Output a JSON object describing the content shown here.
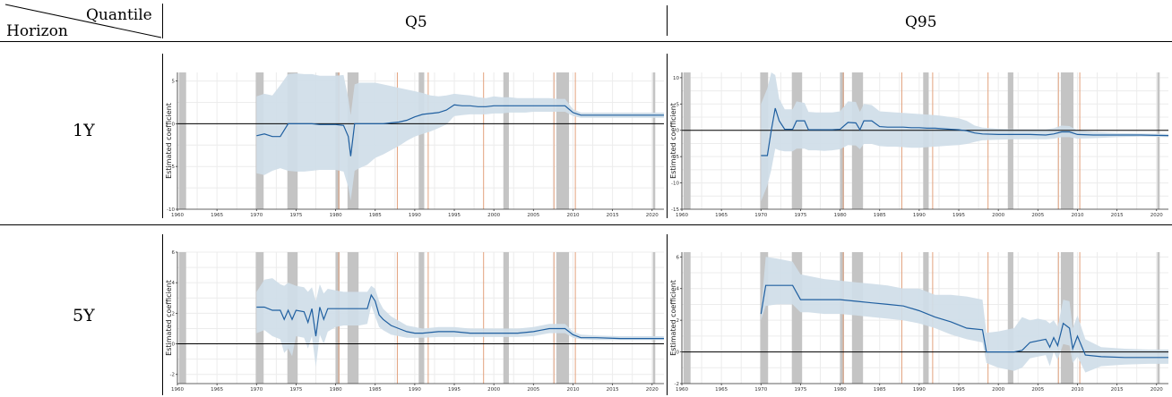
{
  "table": {
    "corner_top": "Quantile",
    "corner_bottom": "Horizon",
    "col_headers": [
      "Q5",
      "Q95"
    ],
    "row_headers": [
      "1Y",
      "5Y"
    ]
  },
  "colors": {
    "line": "#1f5fa0",
    "band": "#cfdde8",
    "recession": "#c4c4c4",
    "event": "#e2a27e",
    "grid": "#ececec",
    "zero": "#000000"
  },
  "shared": {
    "xlim": [
      1960,
      2021.5
    ],
    "xticks": [
      1960,
      1965,
      1970,
      1975,
      1980,
      1985,
      1990,
      1995,
      2000,
      2005,
      2010,
      2015,
      2020
    ],
    "ylabel": "Estimated coefficient",
    "recessions": [
      [
        1960.2,
        1961.1
      ],
      [
        1969.9,
        1970.9
      ],
      [
        1973.9,
        1975.2
      ],
      [
        1980.0,
        1980.5
      ],
      [
        1981.5,
        1982.9
      ],
      [
        1990.5,
        1991.2
      ],
      [
        2001.2,
        2001.9
      ],
      [
        2007.9,
        2009.5
      ],
      [
        2020.1,
        2020.4
      ]
    ],
    "events": [
      1980.4,
      1987.8,
      1991.7,
      1998.7,
      2007.6,
      2010.3
    ]
  },
  "chart_data": [
    {
      "type": "line",
      "id": "q5-1y",
      "ylim": [
        -10,
        6
      ],
      "yticks": [
        -10,
        -5,
        0,
        5
      ],
      "x": [
        1970,
        1971,
        1972,
        1973,
        1974,
        1975,
        1976,
        1977,
        1978,
        1979,
        1980,
        1981,
        1981.6,
        1981.9,
        1982.4,
        1983,
        1984,
        1985,
        1986,
        1987,
        1988,
        1989,
        1990,
        1991,
        1992,
        1993,
        1994,
        1995,
        1996,
        1997,
        1998,
        1999,
        2000,
        2001,
        2002,
        2003,
        2004,
        2005,
        2006,
        2007,
        2008,
        2009,
        2010,
        2011,
        2012,
        2013,
        2014,
        2015,
        2016,
        2017,
        2018,
        2019,
        2020,
        2021.5
      ],
      "y": [
        -1.4,
        -1.2,
        -1.5,
        -1.5,
        0.0,
        0.0,
        0.0,
        0.0,
        -0.1,
        -0.1,
        -0.1,
        -0.2,
        -1.5,
        -3.8,
        0.0,
        0.0,
        0.0,
        0.0,
        0.0,
        0.1,
        0.2,
        0.4,
        0.8,
        1.1,
        1.2,
        1.3,
        1.6,
        2.2,
        2.1,
        2.1,
        2.0,
        2.0,
        2.1,
        2.1,
        2.1,
        2.1,
        2.1,
        2.1,
        2.1,
        2.1,
        2.1,
        2.1,
        1.3,
        1.0,
        1.0,
        1.0,
        1.0,
        1.0,
        1.0,
        1.0,
        1.0,
        1.0,
        1.0,
        1.0
      ],
      "lower": [
        -5.8,
        -6.0,
        -5.5,
        -5.2,
        -5.5,
        -5.6,
        -5.6,
        -5.5,
        -5.4,
        -5.4,
        -5.4,
        -5.6,
        -7.4,
        -9.0,
        -5.5,
        -5.2,
        -4.8,
        -4.0,
        -3.6,
        -3.1,
        -2.6,
        -2.0,
        -1.5,
        -1.2,
        -0.9,
        -0.5,
        -0.1,
        0.9,
        1.0,
        1.1,
        1.1,
        1.1,
        1.2,
        1.2,
        1.3,
        1.3,
        1.3,
        1.4,
        1.4,
        1.4,
        1.4,
        1.4,
        0.9,
        0.7,
        0.7,
        0.7,
        0.7,
        0.7,
        0.7,
        0.7,
        0.7,
        0.7,
        0.7,
        0.7
      ],
      "upper": [
        3.2,
        3.5,
        3.3,
        4.5,
        5.8,
        5.9,
        5.8,
        5.8,
        5.6,
        5.6,
        5.6,
        5.7,
        3.0,
        1.0,
        4.6,
        4.8,
        4.8,
        4.8,
        4.6,
        4.4,
        4.2,
        4.0,
        3.8,
        3.6,
        3.3,
        3.2,
        3.3,
        3.5,
        3.4,
        3.3,
        3.1,
        3.0,
        3.2,
        3.1,
        3.1,
        3.0,
        3.0,
        3.0,
        3.0,
        3.0,
        2.9,
        2.9,
        1.7,
        1.3,
        1.3,
        1.3,
        1.3,
        1.3,
        1.3,
        1.3,
        1.3,
        1.3,
        1.3,
        1.3
      ]
    },
    {
      "type": "line",
      "id": "q95-1y",
      "ylim": [
        -15,
        11
      ],
      "yticks": [
        -15,
        -10,
        -5,
        0,
        5,
        10
      ],
      "x": [
        1970,
        1970.8,
        1971.3,
        1971.8,
        1972.3,
        1973,
        1974,
        1974.5,
        1975.5,
        1976,
        1977,
        1978,
        1979,
        1980,
        1981,
        1982,
        1982.5,
        1983,
        1984,
        1985,
        1986,
        1987,
        1988,
        1989,
        1990,
        1991,
        1992,
        1993,
        1994,
        1995,
        1996,
        1997,
        1998,
        2000,
        2002,
        2004,
        2006,
        2007,
        2008,
        2009,
        2010,
        2012,
        2015,
        2018,
        2021.5
      ],
      "y": [
        -4.8,
        -4.8,
        0.0,
        4.2,
        1.8,
        0.2,
        0.2,
        1.8,
        1.8,
        0.1,
        0.1,
        0.1,
        0.1,
        0.2,
        1.5,
        1.4,
        0.1,
        1.8,
        1.8,
        0.7,
        0.6,
        0.6,
        0.6,
        0.5,
        0.5,
        0.4,
        0.4,
        0.3,
        0.2,
        0.1,
        -0.1,
        -0.5,
        -0.7,
        -0.8,
        -0.8,
        -0.8,
        -0.9,
        -0.7,
        -0.3,
        -0.3,
        -0.8,
        -0.9,
        -0.9,
        -0.9,
        -1.0
      ],
      "lower": [
        -13.5,
        -10.5,
        -7.5,
        -3.5,
        -3.8,
        -4.0,
        -4.0,
        -3.5,
        -3.5,
        -3.8,
        -3.8,
        -3.9,
        -3.8,
        -3.6,
        -2.8,
        -2.9,
        -3.6,
        -2.6,
        -2.6,
        -3.0,
        -3.1,
        -3.1,
        -3.2,
        -3.3,
        -3.3,
        -3.2,
        -3.1,
        -3.0,
        -2.9,
        -2.8,
        -2.6,
        -2.2,
        -1.9,
        -1.8,
        -1.7,
        -1.7,
        -1.7,
        -1.6,
        -1.3,
        -1.3,
        -1.6,
        -1.5,
        -1.3,
        -1.2,
        -1.3
      ],
      "upper": [
        5.0,
        8.0,
        11.0,
        10.5,
        6.0,
        4.0,
        4.0,
        5.5,
        5.2,
        3.5,
        3.4,
        3.4,
        3.4,
        3.6,
        5.5,
        5.4,
        3.5,
        5.0,
        4.8,
        3.6,
        3.5,
        3.4,
        3.3,
        3.2,
        3.1,
        3.0,
        2.9,
        2.7,
        2.5,
        2.3,
        1.8,
        0.9,
        0.5,
        0.3,
        0.2,
        0.2,
        0.2,
        0.4,
        0.9,
        0.8,
        0.0,
        -0.3,
        -0.5,
        -0.6,
        -0.7
      ]
    },
    {
      "type": "line",
      "id": "q5-5y",
      "ylim": [
        -2.6,
        6
      ],
      "yticks": [
        -2,
        0,
        2,
        4,
        6
      ],
      "x": [
        1970,
        1971,
        1972,
        1973,
        1973.5,
        1974,
        1974.5,
        1975,
        1976,
        1976.5,
        1977,
        1977.5,
        1978,
        1978.5,
        1979,
        1980,
        1981,
        1982,
        1983,
        1984,
        1984.5,
        1985,
        1985.5,
        1986,
        1987,
        1988,
        1989,
        1990,
        1991,
        1993,
        1995,
        1997,
        1999,
        2001,
        2003,
        2005,
        2006,
        2007,
        2009,
        2010,
        2011,
        2013,
        2016,
        2019,
        2021.5
      ],
      "y": [
        2.4,
        2.4,
        2.2,
        2.2,
        1.6,
        2.2,
        1.6,
        2.2,
        2.1,
        1.4,
        2.3,
        0.5,
        2.4,
        1.6,
        2.3,
        2.3,
        2.3,
        2.3,
        2.3,
        2.3,
        3.2,
        2.8,
        1.9,
        1.6,
        1.2,
        1.0,
        0.8,
        0.7,
        0.7,
        0.8,
        0.8,
        0.7,
        0.7,
        0.7,
        0.7,
        0.8,
        0.9,
        1.0,
        1.0,
        0.6,
        0.4,
        0.4,
        0.35,
        0.35,
        0.35
      ],
      "lower": [
        0.7,
        0.9,
        0.5,
        0.3,
        -0.6,
        -0.3,
        -0.8,
        0.5,
        0.4,
        -0.3,
        0.5,
        -1.5,
        0.6,
        0.0,
        0.8,
        1.1,
        1.2,
        1.2,
        1.2,
        1.3,
        2.5,
        1.8,
        1.1,
        0.9,
        0.6,
        0.5,
        0.4,
        0.4,
        0.4,
        0.45,
        0.45,
        0.45,
        0.45,
        0.45,
        0.45,
        0.5,
        0.6,
        0.7,
        0.7,
        0.4,
        0.3,
        0.25,
        0.25,
        0.25,
        0.25
      ],
      "upper": [
        3.4,
        4.2,
        4.3,
        3.9,
        3.8,
        4.0,
        3.9,
        3.8,
        3.7,
        3.4,
        3.7,
        2.8,
        3.9,
        3.3,
        3.6,
        3.5,
        3.4,
        3.4,
        3.4,
        3.4,
        3.8,
        3.6,
        2.8,
        2.3,
        1.8,
        1.5,
        1.2,
        1.1,
        1.0,
        1.1,
        1.1,
        1.0,
        1.0,
        1.0,
        1.0,
        1.1,
        1.2,
        1.3,
        1.3,
        0.8,
        0.6,
        0.55,
        0.5,
        0.5,
        0.5
      ]
    },
    {
      "type": "line",
      "id": "q95-5y",
      "ylim": [
        -2,
        6.3
      ],
      "yticks": [
        -2,
        0,
        2,
        4,
        6
      ],
      "x": [
        1970,
        1970.6,
        1972,
        1974,
        1975,
        1976,
        1978,
        1980,
        1982,
        1984,
        1986,
        1988,
        1990,
        1992,
        1994,
        1996,
        1998,
        1998.5,
        2000,
        2002,
        2003,
        2004,
        2005,
        2006,
        2006.5,
        2007,
        2007.5,
        2008.2,
        2009,
        2009.4,
        2010,
        2011,
        2013,
        2016,
        2019,
        2021.5
      ],
      "y": [
        2.4,
        4.2,
        4.2,
        4.2,
        3.3,
        3.3,
        3.3,
        3.3,
        3.2,
        3.1,
        3.0,
        2.9,
        2.6,
        2.2,
        1.9,
        1.5,
        1.4,
        0.0,
        0.0,
        0.0,
        0.1,
        0.6,
        0.7,
        0.8,
        0.3,
        0.9,
        0.4,
        1.8,
        1.5,
        0.2,
        1.0,
        -0.2,
        -0.3,
        -0.35,
        -0.35,
        -0.35
      ],
      "lower": [
        2.0,
        2.9,
        3.0,
        3.0,
        2.5,
        2.5,
        2.4,
        2.4,
        2.3,
        2.2,
        2.1,
        2.0,
        1.8,
        1.5,
        1.1,
        0.8,
        0.6,
        -0.7,
        -1.0,
        -1.2,
        -1.0,
        -0.4,
        -0.3,
        -0.2,
        -0.9,
        0.0,
        -0.5,
        0.5,
        0.4,
        -0.7,
        -0.3,
        -1.3,
        -0.9,
        -0.8,
        -0.75,
        -0.75
      ],
      "upper": [
        2.6,
        6.0,
        5.9,
        5.7,
        4.9,
        4.8,
        4.6,
        4.5,
        4.4,
        4.3,
        4.2,
        4.0,
        4.0,
        3.6,
        3.6,
        3.5,
        3.3,
        1.2,
        1.3,
        1.5,
        2.2,
        2.0,
        2.1,
        2.0,
        1.8,
        2.0,
        1.6,
        3.3,
        3.2,
        1.5,
        2.3,
        0.8,
        0.3,
        0.2,
        0.15,
        0.15
      ]
    }
  ]
}
